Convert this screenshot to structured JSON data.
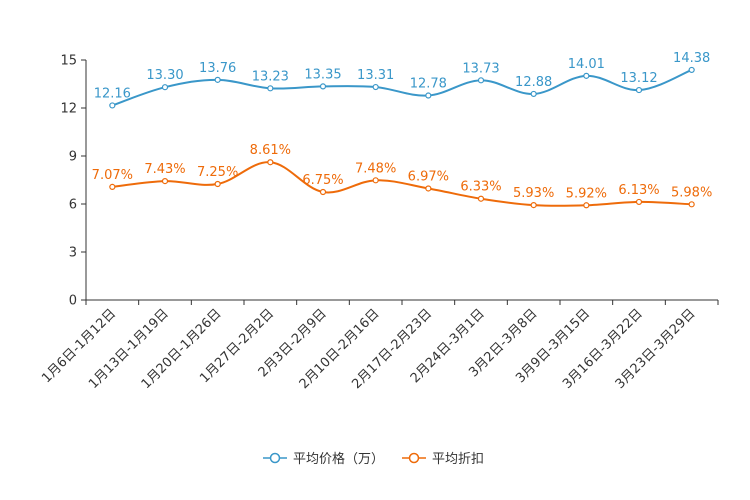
{
  "chart_data": {
    "type": "line",
    "title": "",
    "xlabel": "",
    "ylabel": "",
    "ylim": [
      0,
      15
    ],
    "yticks": [
      0,
      3,
      6,
      9,
      12,
      15
    ],
    "grid": false,
    "legend_position": "bottom-center",
    "categories": [
      "1月6日-1月12日",
      "1月13日-1月19日",
      "1月20日-1月26日",
      "1月27日-2月2日",
      "2月3日-2月9日",
      "2月10日-2月16日",
      "2月17日-2月23日",
      "2月24日-3月1日",
      "3月2日-3月8日",
      "3月9日-3月15日",
      "3月16日-3月22日",
      "3月23日-3月29日"
    ],
    "series": [
      {
        "name": "平均价格（万）",
        "color": "#3A97C9",
        "values": [
          12.16,
          13.3,
          13.76,
          13.23,
          13.35,
          13.31,
          12.78,
          13.73,
          12.88,
          14.01,
          13.12,
          14.38
        ],
        "labels": [
          "12.16",
          "13.30",
          "13.76",
          "13.23",
          "13.35",
          "13.31",
          "12.78",
          "13.73",
          "12.88",
          "14.01",
          "13.12",
          "14.38"
        ]
      },
      {
        "name": "平均折扣",
        "color": "#EE6B0A",
        "values": [
          7.07,
          7.43,
          7.25,
          8.61,
          6.75,
          7.48,
          6.97,
          6.33,
          5.93,
          5.92,
          6.13,
          5.98
        ],
        "labels": [
          "7.07%",
          "7.43%",
          "7.25%",
          "8.61%",
          "6.75%",
          "7.48%",
          "6.97%",
          "6.33%",
          "5.93%",
          "5.92%",
          "6.13%",
          "5.98%"
        ]
      }
    ]
  }
}
